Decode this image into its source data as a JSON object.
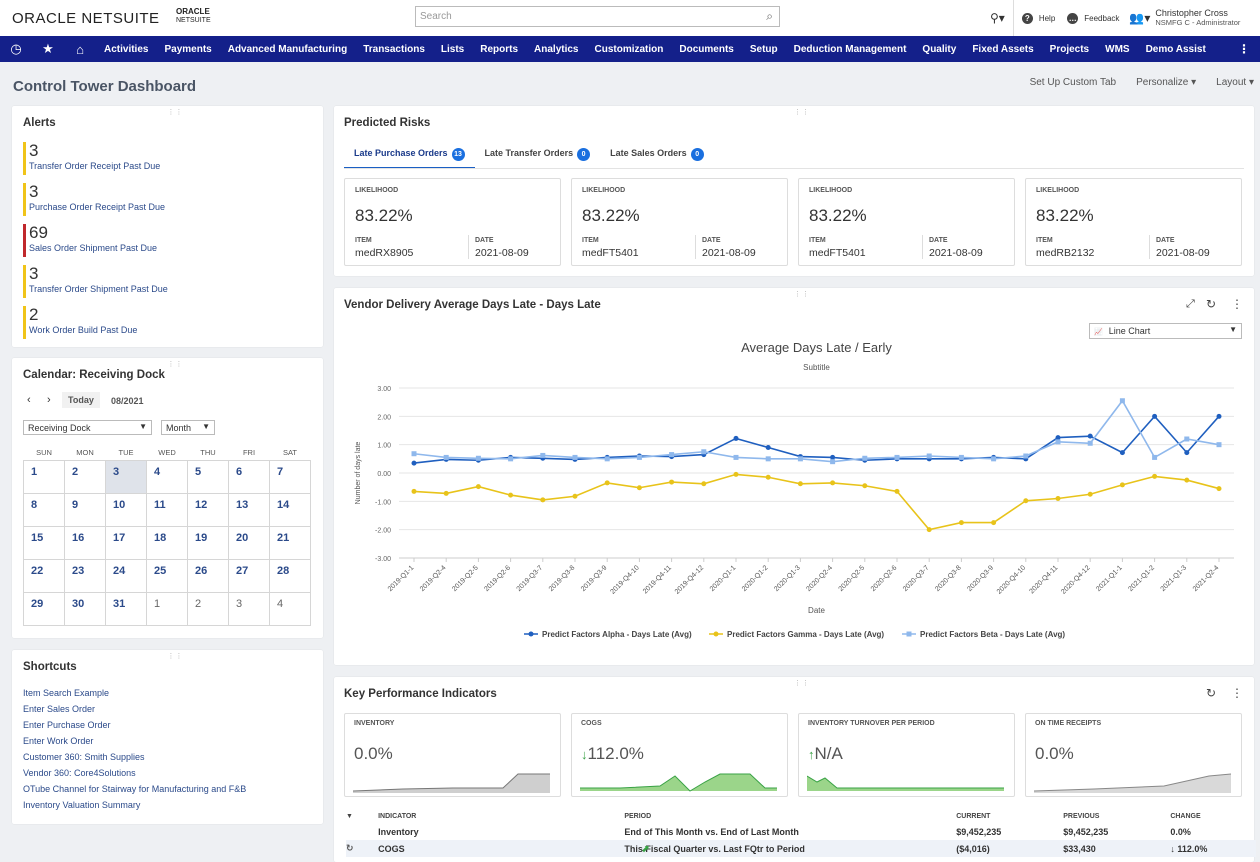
{
  "header": {
    "logo_main": "ORACLE NETSUITE",
    "logo_sub_1": "ORACLE",
    "logo_sub_2": "NETSUITE",
    "search_placeholder": "Search",
    "help": "Help",
    "feedback": "Feedback",
    "user_name": "Christopher Cross",
    "user_role": "NSMFG C - Administrator"
  },
  "nav": [
    "Activities",
    "Payments",
    "Advanced Manufacturing",
    "Transactions",
    "Lists",
    "Reports",
    "Analytics",
    "Customization",
    "Documents",
    "Setup",
    "Deduction Management",
    "Quality",
    "Fixed Assets",
    "Projects",
    "WMS",
    "Demo Assist"
  ],
  "page": {
    "title": "Control Tower Dashboard",
    "actions": [
      "Set Up Custom Tab",
      "Personalize ▾",
      "Layout ▾"
    ]
  },
  "alerts": {
    "title": "Alerts",
    "items": [
      {
        "count": "3",
        "label": "Transfer Order Receipt Past Due",
        "color": "#f0c419"
      },
      {
        "count": "3",
        "label": "Purchase Order Receipt Past Due",
        "color": "#f0c419"
      },
      {
        "count": "69",
        "label": "Sales Order Shipment Past Due",
        "color": "#c0282c"
      },
      {
        "count": "3",
        "label": "Transfer Order Shipment Past Due",
        "color": "#f0c419"
      },
      {
        "count": "2",
        "label": "Work Order Build Past Due",
        "color": "#f0c419"
      }
    ]
  },
  "calendar": {
    "title": "Calendar: Receiving Dock",
    "today": "Today",
    "month": "08/2021",
    "dock": "Receiving Dock",
    "view": "Month",
    "days": [
      "SUN",
      "MON",
      "TUE",
      "WED",
      "THU",
      "FRI",
      "SAT"
    ],
    "weeks": [
      [
        "1",
        "2",
        "3",
        "4",
        "5",
        "6",
        "7"
      ],
      [
        "8",
        "9",
        "10",
        "11",
        "12",
        "13",
        "14"
      ],
      [
        "15",
        "16",
        "17",
        "18",
        "19",
        "20",
        "21"
      ],
      [
        "22",
        "23",
        "24",
        "25",
        "26",
        "27",
        "28"
      ],
      [
        "29",
        "30",
        "31",
        "1",
        "2",
        "3",
        "4"
      ]
    ]
  },
  "shortcuts": {
    "title": "Shortcuts",
    "items": [
      "Item Search Example",
      "Enter Sales Order",
      "Enter Purchase Order",
      "Enter Work Order",
      "Customer 360: Smith Supplies",
      "Vendor 360: Core4Solutions",
      "OTube Channel for Stairway for Manufacturing and F&B",
      "Inventory Valuation Summary"
    ]
  },
  "risks": {
    "title": "Predicted Risks",
    "tabs": [
      {
        "label": "Late Purchase Orders",
        "count": "13"
      },
      {
        "label": "Late Transfer Orders",
        "count": "0"
      },
      {
        "label": "Late Sales Orders",
        "count": "0"
      }
    ],
    "likelihood_label": "LIKELIHOOD",
    "item_label": "ITEM",
    "date_label": "DATE",
    "cards": [
      {
        "pct": "83.22%",
        "item": "medRX8905",
        "date": "2021-08-09"
      },
      {
        "pct": "83.22%",
        "item": "medFT5401",
        "date": "2021-08-09"
      },
      {
        "pct": "83.22%",
        "item": "medFT5401",
        "date": "2021-08-09"
      },
      {
        "pct": "83.22%",
        "item": "medRB2132",
        "date": "2021-08-09"
      }
    ]
  },
  "vendor": {
    "title": "Vendor Delivery Average Days Late - Days Late",
    "chart_type_select": "Line Chart"
  },
  "chart_data": {
    "type": "line",
    "title": "Average Days Late / Early",
    "subtitle": "Subtitle",
    "xlabel": "Date",
    "ylabel": "Number of days late",
    "ylim": [
      -3,
      3
    ],
    "yticks": [
      "3.00",
      "2.00",
      "1.00",
      "0.00",
      "-1.00",
      "-2.00",
      "-3.00"
    ],
    "categories": [
      "2019-Q1-1",
      "2019-Q2-4",
      "2019-Q2-5",
      "2019-Q2-6",
      "2019-Q3-7",
      "2019-Q3-8",
      "2019-Q3-9",
      "2019-Q4-10",
      "2019-Q4-11",
      "2019-Q4-12",
      "2020-Q1-1",
      "2020-Q1-2",
      "2020-Q1-3",
      "2020-Q2-4",
      "2020-Q2-5",
      "2020-Q2-6",
      "2020-Q3-7",
      "2020-Q3-8",
      "2020-Q3-9",
      "2020-Q4-10",
      "2020-Q4-11",
      "2020-Q4-12",
      "2021-Q1-1",
      "2021-Q1-2",
      "2021-Q1-3",
      "2021-Q2-4"
    ],
    "series": [
      {
        "name": "Predict Factors Alpha - Days Late (Avg)",
        "color": "#1f5fbf",
        "values": [
          0.35,
          0.48,
          0.45,
          0.55,
          0.52,
          0.48,
          0.55,
          0.6,
          0.58,
          0.65,
          1.22,
          0.9,
          0.58,
          0.55,
          0.45,
          0.5,
          0.5,
          0.5,
          0.55,
          0.5,
          1.25,
          1.3,
          0.72,
          2.0,
          0.72,
          2.0
        ]
      },
      {
        "name": "Predict Factors Gamma - Days Late (Avg)",
        "color": "#e8c31a",
        "values": [
          -0.65,
          -0.72,
          -0.48,
          -0.78,
          -0.95,
          -0.82,
          -0.35,
          -0.52,
          -0.32,
          -0.38,
          -0.05,
          -0.15,
          -0.38,
          -0.35,
          -0.45,
          -0.65,
          -2.0,
          -1.75,
          -1.75,
          -0.98,
          -0.9,
          -0.75,
          -0.42,
          -0.12,
          -0.25,
          -0.55
        ]
      },
      {
        "name": "Predict Factors Beta - Days Late (Avg)",
        "color": "#8fb8ec",
        "values": [
          0.68,
          0.55,
          0.52,
          0.5,
          0.62,
          0.55,
          0.5,
          0.55,
          0.65,
          0.75,
          0.55,
          0.5,
          0.5,
          0.4,
          0.52,
          0.55,
          0.6,
          0.55,
          0.5,
          0.6,
          1.1,
          1.05,
          2.55,
          0.55,
          1.2,
          1.0
        ]
      }
    ]
  },
  "kpi": {
    "title": "Key Performance Indicators",
    "cards": [
      {
        "label": "INVENTORY",
        "value": "0.0%",
        "trend": ""
      },
      {
        "label": "COGS",
        "value": "112.0%",
        "trend": "↓"
      },
      {
        "label": "INVENTORY TURNOVER PER PERIOD",
        "value": "N/A",
        "trend": "↑"
      },
      {
        "label": "ON TIME RECEIPTS",
        "value": "0.0%",
        "trend": ""
      }
    ],
    "table_headers": [
      "INDICATOR",
      "PERIOD",
      "CURRENT",
      "PREVIOUS",
      "CHANGE"
    ],
    "rows": [
      {
        "indicator": "Inventory",
        "period": "End of This Month vs. End of Last Month",
        "current": "$9,452,235",
        "previous": "$9,452,235",
        "change": "0.0%"
      },
      {
        "indicator": "COGS",
        "period": "This Fiscal Quarter vs. Last FQtr to Period",
        "current": "($4,016)",
        "previous": "$33,430",
        "change": "↓ 112.0%"
      }
    ]
  }
}
